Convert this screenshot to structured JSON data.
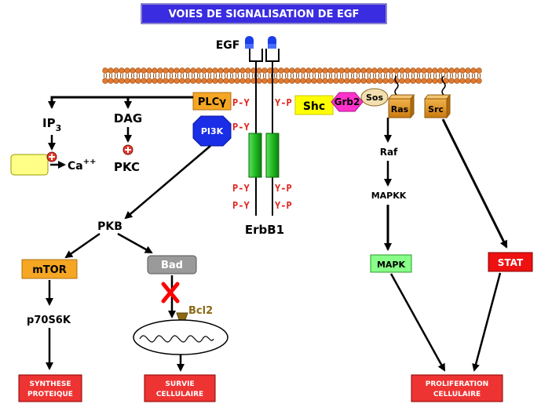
{
  "title": "VOIES DE SIGNALISATION DE EGF",
  "ligand": "EGF",
  "receptor": "ErbB1",
  "phospho": {
    "py": "P-Y",
    "yp": "Y-P"
  },
  "adaptors": {
    "plc": "PLCγ",
    "pi3k": "PI3K",
    "shc": "Shc",
    "grb2": "Grb2",
    "sos": "Sos",
    "ras": "Ras",
    "src": "Src"
  },
  "left_branch": {
    "ip3": "IP",
    "ip3_sub": "3",
    "dag": "DAG",
    "ca": "Ca",
    "ca_sup": "++",
    "pkc": "PKC"
  },
  "pi3k_branch": {
    "pkb": "PKB",
    "mtor": "mTOR",
    "bad": "Bad",
    "p70": "p70S6K",
    "bcl2": "Bcl2"
  },
  "mapk_branch": {
    "raf": "Raf",
    "mapkk": "MAPKK",
    "mapk": "MAPK",
    "stat": "STAT"
  },
  "outcomes": {
    "synthese": [
      "SYNTHESE",
      "PROTEIQUE"
    ],
    "survie": [
      "SURVIE",
      "CELLULAIRE"
    ],
    "prolif": [
      "PROLIFERATION",
      "CELLULAIRE"
    ]
  },
  "colors": {
    "title_bg": "#3a2ce0",
    "membrane": "#e07a30",
    "plc": "#f5a623",
    "pi3k": "#1a2ee8",
    "shc": "#ffff00",
    "grb2": "#ff33cc",
    "ras_src": "#d98a20",
    "receptor": "#22bb22",
    "mtor": "#f5a623",
    "bad": "#9a9a9a",
    "mapk": "#88ff88",
    "stat": "#ee1111",
    "outcome": "#ee3333",
    "phospho": "#e0201a",
    "bcl2": "#8b6914",
    "cross": "#ff0000"
  }
}
